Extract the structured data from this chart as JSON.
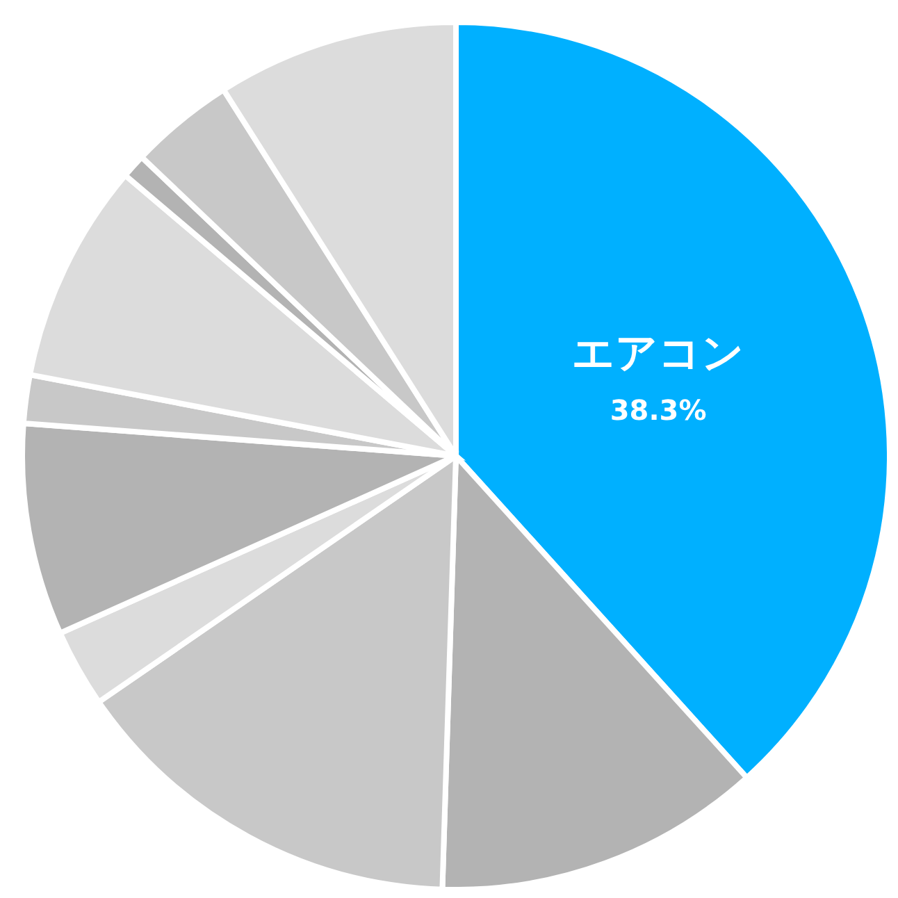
{
  "chart_data": {
    "type": "pie",
    "categories": [
      "エアコン",
      null,
      null,
      null,
      null,
      null,
      null,
      null,
      null,
      null
    ],
    "values": [
      38.3,
      12.2,
      14.9,
      2.9,
      7.9,
      1.8,
      8.2,
      0.9,
      3.9,
      9.0
    ],
    "colors": [
      "#00b0ff",
      "#b3b3b3",
      "#c8c8c8",
      "#dcdcdc",
      "#b3b3b3",
      "#c8c8c8",
      "#dcdcdc",
      "#b3b3b3",
      "#c8c8c8",
      "#dcdcdc"
    ],
    "value_labels": [
      "38.3%",
      null,
      null,
      null,
      null,
      null,
      null,
      null,
      null,
      null
    ]
  }
}
